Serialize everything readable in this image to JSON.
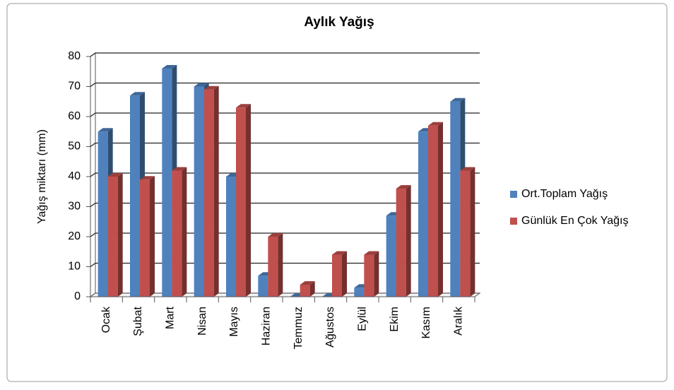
{
  "chart_data": {
    "type": "bar",
    "title": "Aylık Yağış",
    "y_label": "Yağış miktarı (mm)",
    "categories": [
      "Ocak",
      "Şubat",
      "Mart",
      "Nisan",
      "Mayıs",
      "Haziran",
      "Temmuz",
      "Ağustos",
      "Eylül",
      "Ekim",
      "Kasım",
      "Aralık"
    ],
    "series": [
      {
        "name": "Ort.Toplam Yağış",
        "color": "#4f81bd",
        "values": [
          55,
          67,
          76,
          70,
          40,
          7,
          0,
          0,
          3,
          27,
          55,
          65
        ]
      },
      {
        "name": "Günlük En Çok Yağış",
        "color": "#c0504d",
        "values": [
          40,
          39,
          42,
          69,
          63,
          20,
          4,
          14,
          14,
          36,
          57,
          42
        ]
      }
    ],
    "ylim": [
      0,
      80
    ],
    "yticks": [
      0,
      10,
      20,
      30,
      40,
      50,
      60,
      70,
      80
    ],
    "grid": true,
    "legend": "right"
  }
}
